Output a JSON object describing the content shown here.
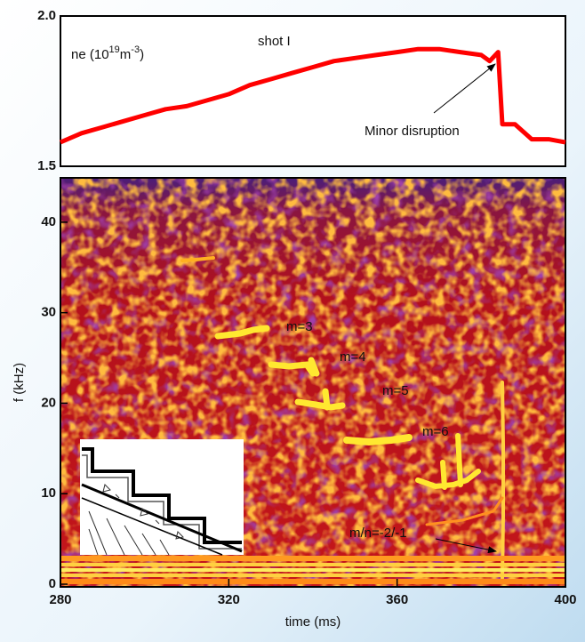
{
  "chart_data": [
    {
      "type": "line",
      "title": "shot I",
      "ylabel_parts": [
        "ne (10",
        "19",
        "m",
        "-3",
        ")"
      ],
      "annotation": "Minor disruption",
      "x": [
        280,
        285,
        290,
        295,
        300,
        305,
        310,
        315,
        320,
        325,
        330,
        335,
        340,
        345,
        350,
        355,
        360,
        365,
        370,
        375,
        380,
        382,
        384,
        385,
        388,
        392,
        396,
        400
      ],
      "values": [
        1.58,
        1.61,
        1.63,
        1.65,
        1.67,
        1.69,
        1.7,
        1.72,
        1.74,
        1.77,
        1.79,
        1.81,
        1.83,
        1.85,
        1.86,
        1.87,
        1.88,
        1.89,
        1.89,
        1.88,
        1.87,
        1.85,
        1.88,
        1.64,
        1.64,
        1.59,
        1.59,
        1.58
      ],
      "color": "#ff0000",
      "xlim": [
        280,
        400
      ],
      "ylim": [
        1.5,
        2.0
      ],
      "yticks": [
        1.5,
        {
          "value": 2.0,
          "label": "2.0"
        }
      ]
    },
    {
      "type": "spectrogram",
      "xlabel": "time (ms)",
      "ylabel": "f (kHz)",
      "xlim": [
        280,
        400
      ],
      "ylim": [
        0,
        45
      ],
      "xticks": [
        280,
        320,
        360,
        400
      ],
      "yticks": [
        0,
        10,
        20,
        30,
        40
      ],
      "annotations": [
        "m=3",
        "m=4",
        "m=5",
        "m=6",
        "m/n=-2/-1"
      ]
    }
  ]
}
